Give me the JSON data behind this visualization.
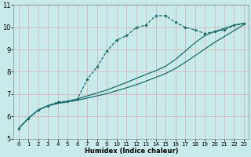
{
  "xlabel": "Humidex (Indice chaleur)",
  "bg_color": "#c8eaea",
  "grid_color": "#b8d8d8",
  "line_color": "#1a6b6b",
  "xlim": [
    -0.5,
    23.5
  ],
  "ylim": [
    5,
    11
  ],
  "yticks": [
    5,
    6,
    7,
    8,
    9,
    10,
    11
  ],
  "xticks": [
    0,
    1,
    2,
    3,
    4,
    5,
    6,
    7,
    8,
    9,
    10,
    11,
    12,
    13,
    14,
    15,
    16,
    17,
    18,
    19,
    20,
    21,
    22,
    23
  ],
  "curve1_x": [
    0,
    1,
    2,
    3,
    4,
    5,
    6,
    7,
    8,
    9,
    10,
    11,
    12,
    13,
    14,
    15,
    16,
    17,
    18,
    19,
    20,
    21,
    22,
    23
  ],
  "curve1_y": [
    5.45,
    5.92,
    6.28,
    6.48,
    6.58,
    6.65,
    6.72,
    6.82,
    6.92,
    7.02,
    7.15,
    7.28,
    7.42,
    7.58,
    7.75,
    7.92,
    8.15,
    8.42,
    8.72,
    9.02,
    9.32,
    9.58,
    9.85,
    10.12
  ],
  "curve2_x": [
    0,
    1,
    2,
    3,
    4,
    5,
    6,
    7,
    8,
    9,
    10,
    11,
    12,
    13,
    14,
    15,
    16,
    17,
    18,
    19,
    20,
    21,
    22,
    23
  ],
  "curve2_y": [
    5.45,
    5.92,
    6.28,
    6.48,
    6.6,
    6.68,
    6.78,
    6.92,
    7.05,
    7.18,
    7.35,
    7.52,
    7.7,
    7.88,
    8.05,
    8.25,
    8.55,
    8.92,
    9.3,
    9.62,
    9.8,
    9.95,
    10.1,
    10.18
  ],
  "curve3_x": [
    0,
    1,
    2,
    3,
    4,
    5,
    6,
    7,
    8,
    9,
    10,
    11,
    12,
    13,
    14,
    15,
    16,
    17,
    18,
    19,
    20,
    21,
    22,
    23
  ],
  "curve3_y": [
    5.45,
    5.92,
    6.28,
    6.48,
    6.65,
    6.68,
    6.78,
    7.65,
    8.22,
    8.92,
    9.42,
    9.62,
    9.98,
    10.1,
    10.52,
    10.52,
    10.22,
    10.0,
    9.88,
    9.72,
    9.8,
    9.88,
    10.08,
    10.15
  ]
}
